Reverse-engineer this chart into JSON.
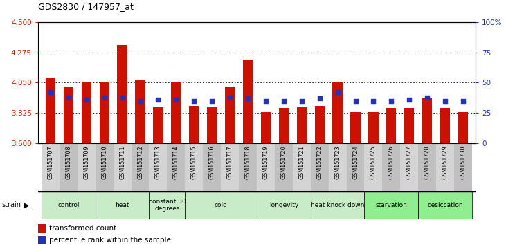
{
  "title": "GDS2830 / 147957_at",
  "samples": [
    "GSM151707",
    "GSM151708",
    "GSM151709",
    "GSM151710",
    "GSM151711",
    "GSM151712",
    "GSM151713",
    "GSM151714",
    "GSM151715",
    "GSM151716",
    "GSM151717",
    "GSM151718",
    "GSM151719",
    "GSM151720",
    "GSM151721",
    "GSM151722",
    "GSM151723",
    "GSM151724",
    "GSM151725",
    "GSM151726",
    "GSM151727",
    "GSM151728",
    "GSM151729",
    "GSM151730"
  ],
  "red_values": [
    4.09,
    4.02,
    4.06,
    4.05,
    4.33,
    4.07,
    3.87,
    4.05,
    3.88,
    3.87,
    4.02,
    4.22,
    3.83,
    3.86,
    3.87,
    3.88,
    4.05,
    3.83,
    3.83,
    3.86,
    3.86,
    3.94,
    3.86,
    3.83
  ],
  "blue_pct": [
    42,
    38,
    36,
    38,
    38,
    35,
    36,
    36,
    35,
    35,
    38,
    37,
    35,
    35,
    35,
    37,
    42,
    35,
    35,
    35,
    36,
    38,
    35,
    35
  ],
  "groups": [
    {
      "label": "control",
      "start": 0,
      "end": 2
    },
    {
      "label": "heat",
      "start": 3,
      "end": 5
    },
    {
      "label": "constant 30\ndegrees",
      "start": 6,
      "end": 7
    },
    {
      "label": "cold",
      "start": 8,
      "end": 11
    },
    {
      "label": "longevity",
      "start": 12,
      "end": 14
    },
    {
      "label": "heat knock down",
      "start": 15,
      "end": 17
    },
    {
      "label": "starvation",
      "start": 18,
      "end": 20
    },
    {
      "label": "desiccation",
      "start": 21,
      "end": 23
    }
  ],
  "group_colors": [
    "#c8ecc8",
    "#c8ecc8",
    "#c8ecc8",
    "#c8ecc8",
    "#c8ecc8",
    "#c8ecc8",
    "#90ee90",
    "#90ee90"
  ],
  "ylim_left": [
    3.6,
    4.5
  ],
  "yticks_left": [
    3.6,
    3.825,
    4.05,
    4.275,
    4.5
  ],
  "ylim_right": [
    0,
    100
  ],
  "yticks_right": [
    0,
    25,
    50,
    75,
    100
  ],
  "bar_color": "#cc1100",
  "dot_color": "#2233bb",
  "bar_bottom": 3.6,
  "dot_size": 22,
  "label_color_left": "#cc2200",
  "label_color_right": "#2233bb",
  "sample_bg_odd": "#d4d4d4",
  "sample_bg_even": "#c0c0c0"
}
